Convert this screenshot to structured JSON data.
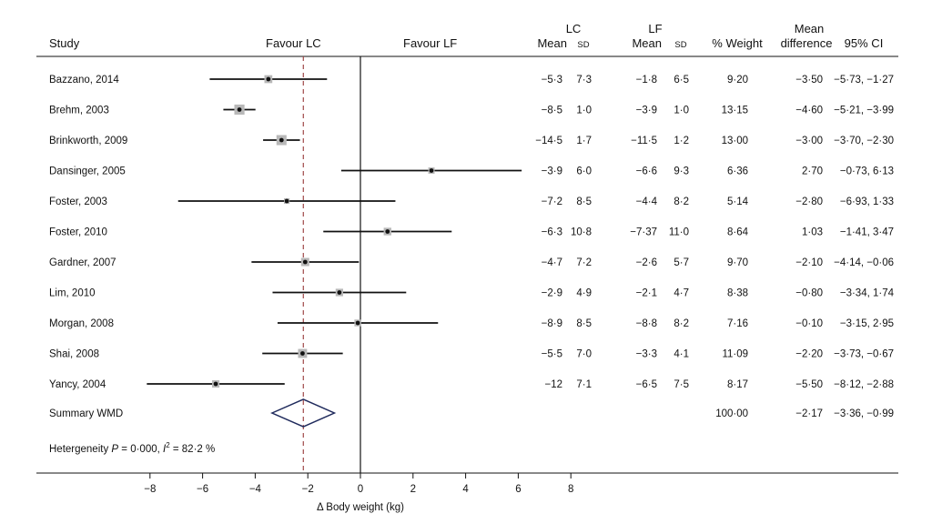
{
  "headers": {
    "study": "Study",
    "favour_lc": "Favour LC",
    "favour_lf": "Favour LF",
    "lc_group": "LC",
    "lf_group": "LF",
    "lc_mean": "Mean",
    "lc_sd": "SD",
    "lf_mean": "Mean",
    "lf_sd": "SD",
    "weight": "% Weight",
    "md_top": "Mean",
    "md": "difference",
    "ci": "95% CI"
  },
  "colors": {
    "line": "#111111",
    "box": "#b8b8b8",
    "summary_ref": "#a04848",
    "diamond": "#1f2a5c"
  },
  "heterogeneity": {
    "prefix": "Hetergeneity",
    "p_symbol": "P",
    "p_text": " = 0·000, ",
    "i_symbol": "I",
    "i_sup": "2",
    "i_text": " = 82·2 %"
  },
  "chart_data": {
    "type": "forest",
    "xlabel": "Δ Body weight (kg)",
    "xlim": [
      -9.5,
      8
    ],
    "xticks": [
      "−8",
      "−6",
      "−4",
      "−2",
      "0",
      "2",
      "4",
      "6",
      "8"
    ],
    "xtick_values": [
      -8,
      -6,
      -4,
      -2,
      0,
      2,
      4,
      6,
      8
    ],
    "summary_line": -2.17,
    "studies": [
      {
        "name": "Bazzano, 2014",
        "lc_mean": "−5·3",
        "lc_sd": "7·3",
        "lf_mean": "−1·8",
        "lf_sd": "6·5",
        "weight": "9·20",
        "md_text": "−3·50",
        "ci_text": "−5·73, −1·27",
        "md": -3.5,
        "lo": -5.73,
        "hi": -1.27,
        "w": 9.2
      },
      {
        "name": "Brehm, 2003",
        "lc_mean": "−8·5",
        "lc_sd": "1·0",
        "lf_mean": "−3·9",
        "lf_sd": "1·0",
        "weight": "13·15",
        "md_text": "−4·60",
        "ci_text": "−5·21, −3·99",
        "md": -4.6,
        "lo": -5.21,
        "hi": -3.99,
        "w": 13.15
      },
      {
        "name": "Brinkworth, 2009",
        "lc_mean": "−14·5",
        "lc_sd": "1·7",
        "lf_mean": "−11·5",
        "lf_sd": "1·2",
        "weight": "13·00",
        "md_text": "−3·00",
        "ci_text": "−3·70, −2·30",
        "md": -3.0,
        "lo": -3.7,
        "hi": -2.3,
        "w": 13.0
      },
      {
        "name": "Dansinger, 2005",
        "lc_mean": "−3·9",
        "lc_sd": "6·0",
        "lf_mean": "−6·6",
        "lf_sd": "9·3",
        "weight": "6·36",
        "md_text": "2·70",
        "ci_text": "−0·73, 6·13",
        "md": 2.7,
        "lo": -0.73,
        "hi": 6.13,
        "w": 6.36
      },
      {
        "name": "Foster, 2003",
        "lc_mean": "−7·2",
        "lc_sd": "8·5",
        "lf_mean": "−4·4",
        "lf_sd": "8·2",
        "weight": "5·14",
        "md_text": "−2·80",
        "ci_text": "−6·93, 1·33",
        "md": -2.8,
        "lo": -6.93,
        "hi": 1.33,
        "w": 5.14
      },
      {
        "name": "Foster, 2010",
        "lc_mean": "−6·3",
        "lc_sd": "10·8",
        "lf_mean": "−7·37",
        "lf_sd": "11·0",
        "weight": "8·64",
        "md_text": "1·03",
        "ci_text": "−1·41, 3·47",
        "md": 1.03,
        "lo": -1.41,
        "hi": 3.47,
        "w": 8.64
      },
      {
        "name": "Gardner, 2007",
        "lc_mean": "−4·7",
        "lc_sd": "7·2",
        "lf_mean": "−2·6",
        "lf_sd": "5·7",
        "weight": "9·70",
        "md_text": "−2·10",
        "ci_text": "−4·14, −0·06",
        "md": -2.1,
        "lo": -4.14,
        "hi": -0.06,
        "w": 9.7
      },
      {
        "name": "Lim, 2010",
        "lc_mean": "−2·9",
        "lc_sd": "4·9",
        "lf_mean": "−2·1",
        "lf_sd": "4·7",
        "weight": "8·38",
        "md_text": "−0·80",
        "ci_text": "−3·34, 1·74",
        "md": -0.8,
        "lo": -3.34,
        "hi": 1.74,
        "w": 8.38
      },
      {
        "name": "Morgan, 2008",
        "lc_mean": "−8·9",
        "lc_sd": "8·5",
        "lf_mean": "−8·8",
        "lf_sd": "8·2",
        "weight": "7·16",
        "md_text": "−0·10",
        "ci_text": "−3·15, 2·95",
        "md": -0.1,
        "lo": -3.15,
        "hi": 2.95,
        "w": 7.16
      },
      {
        "name": "Shai, 2008",
        "lc_mean": "−5·5",
        "lc_sd": "7·0",
        "lf_mean": "−3·3",
        "lf_sd": "4·1",
        "weight": "11·09",
        "md_text": "−2·20",
        "ci_text": "−3·73, −0·67",
        "md": -2.2,
        "lo": -3.73,
        "hi": -0.67,
        "w": 11.09
      },
      {
        "name": "Yancy, 2004",
        "lc_mean": "−12",
        "lc_sd": "7·1",
        "lf_mean": "−6·5",
        "lf_sd": "7·5",
        "weight": "8·17",
        "md_text": "−5·50",
        "ci_text": "−8·12, −2·88",
        "md": -5.5,
        "lo": -8.12,
        "hi": -2.88,
        "w": 8.17
      }
    ],
    "summary": {
      "name": "Summary WMD",
      "weight": "100·00",
      "md_text": "−2·17",
      "ci_text": "−3·36, −0·99",
      "md": -2.17,
      "lo": -3.36,
      "hi": -0.99
    }
  }
}
